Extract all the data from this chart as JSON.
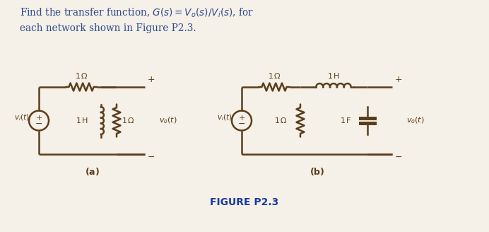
{
  "title_line1": "Find the transfer function, $G(s) = V_o(s)/V_i(s)$, for",
  "title_line2": "each network shown in Figure P2.3.",
  "figure_label": "FIGURE P2.3",
  "text_color": "#2c4a8c",
  "circuit_color": "#5a3e1b",
  "bg_color": "#f5f0e8",
  "line_width": 1.8,
  "fig_width": 6.92,
  "fig_height": 3.28,
  "dpi": 100
}
